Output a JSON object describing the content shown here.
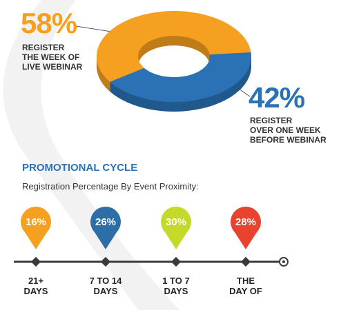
{
  "chart_data": [
    {
      "type": "pie",
      "categories": [
        "REGISTER\nTHE WEEK OF\nLIVE WEBINAR",
        "REGISTER\nOVER ONE WEEK\nBEFORE WEBINAR"
      ],
      "values": [
        58,
        42
      ],
      "value_labels": [
        "58%",
        "42%"
      ],
      "colors": [
        "#f5a020",
        "#2a72b5"
      ]
    },
    {
      "type": "pins",
      "title": "PROMOTIONAL CYCLE",
      "subtitle": "Registration Percentage By Event Proximity:",
      "categories": [
        "21+\nDAYS",
        "7 TO 14\nDAYS",
        "1 TO 7\nDAYS",
        "THE\nDAY OF"
      ],
      "values": [
        16,
        26,
        30,
        28
      ],
      "value_labels": [
        "16%",
        "26%",
        "30%",
        "28%"
      ],
      "colors": [
        "#f5a020",
        "#2e6ea6",
        "#c5d92b",
        "#e8432e"
      ]
    }
  ]
}
